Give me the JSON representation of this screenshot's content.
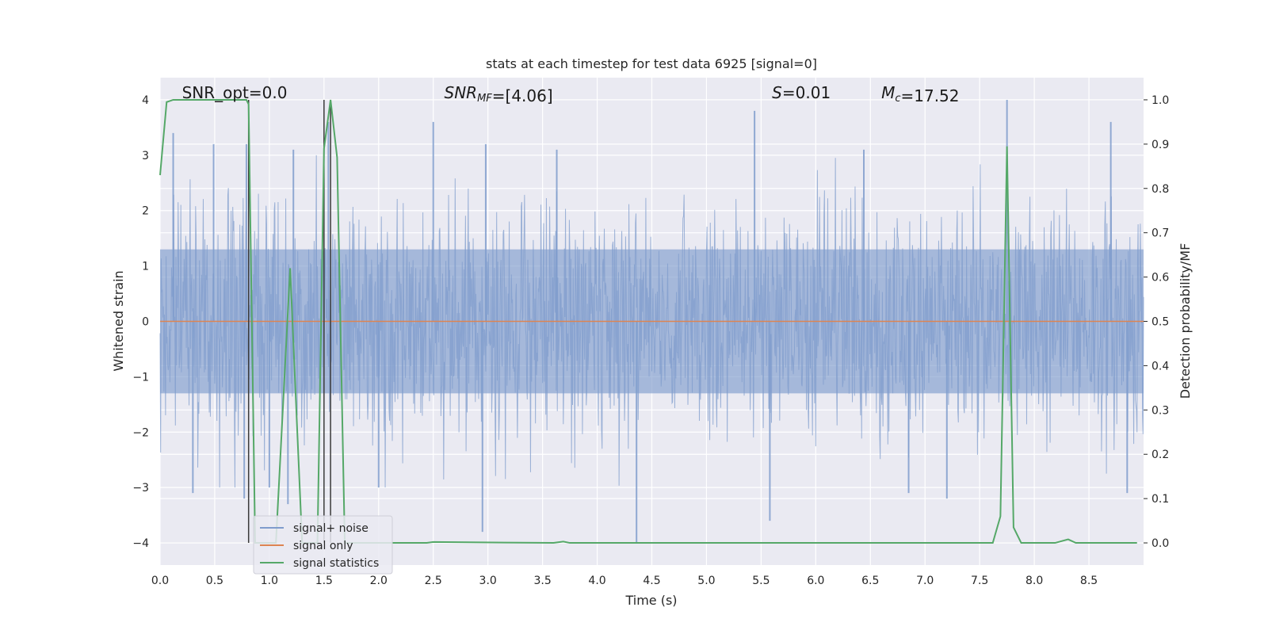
{
  "chart_data": {
    "type": "line",
    "title": "stats at each timestep for test data 6925 [signal=0]",
    "xlabel": "Time (s)",
    "ylabel_left": "Whitened strain",
    "ylabel_right": "Detection probability/MF",
    "xlim": [
      0.0,
      9.0
    ],
    "ylim_left": [
      -4.4,
      4.4
    ],
    "ylim_right": [
      -0.05,
      1.05
    ],
    "xticks": [
      0.0,
      0.5,
      1.0,
      1.5,
      2.0,
      2.5,
      3.0,
      3.5,
      4.0,
      4.5,
      5.0,
      5.5,
      6.0,
      6.5,
      7.0,
      7.5,
      8.0,
      8.5
    ],
    "xtick_labels": [
      "0.0",
      "0.5",
      "1.0",
      "1.5",
      "2.0",
      "2.5",
      "3.0",
      "3.5",
      "4.0",
      "4.5",
      "5.0",
      "5.5",
      "6.0",
      "6.5",
      "7.0",
      "7.5",
      "8.0",
      "8.5"
    ],
    "yticks_left": [
      -4,
      -3,
      -2,
      -1,
      0,
      1,
      2,
      3,
      4
    ],
    "ytick_labels_left": [
      "−4",
      "−3",
      "−2",
      "−1",
      "0",
      "1",
      "2",
      "3",
      "4"
    ],
    "yticks_right": [
      0.0,
      0.1,
      0.2,
      0.3,
      0.4,
      0.5,
      0.6,
      0.7,
      0.8,
      0.9,
      1.0
    ],
    "ytick_labels_right": [
      "0.0",
      "0.1",
      "0.2",
      "0.3",
      "0.4",
      "0.5",
      "0.6",
      "0.7",
      "0.8",
      "0.9",
      "1.0"
    ],
    "grid": true,
    "legend_position": "lower-left",
    "annotations": [
      {
        "text": "SNR_opt=0.0",
        "x": 0.2
      },
      {
        "text": "SNR_MF=[4.06]",
        "x": 2.6
      },
      {
        "text": "S=0.01",
        "x": 5.6
      },
      {
        "text": "M_c=17.52",
        "x": 6.6
      }
    ],
    "vertical_lines": [
      0.81,
      1.5,
      1.56
    ],
    "vertical_lines_range": [
      -4.0,
      4.0
    ],
    "series": [
      {
        "name": "signal+ noise",
        "axis": "left",
        "color": "#7f9ccc",
        "kind": "noise",
        "x_range": [
          0.0,
          9.0
        ],
        "envelope_upper": 2.0,
        "envelope_lower": -1.9,
        "spikes": [
          {
            "x": 0.12,
            "y": 3.4
          },
          {
            "x": 0.49,
            "y": 3.2
          },
          {
            "x": 0.79,
            "y": 3.2
          },
          {
            "x": 1.22,
            "y": 3.1
          },
          {
            "x": 1.54,
            "y": 3.6
          },
          {
            "x": 2.5,
            "y": 3.6
          },
          {
            "x": 2.98,
            "y": 3.2
          },
          {
            "x": 3.63,
            "y": 3.1
          },
          {
            "x": 5.44,
            "y": 3.8
          },
          {
            "x": 6.44,
            "y": 3.1
          },
          {
            "x": 7.75,
            "y": 4.0
          },
          {
            "x": 8.7,
            "y": 3.6
          },
          {
            "x": 0.3,
            "y": -3.1
          },
          {
            "x": 0.77,
            "y": -3.2
          },
          {
            "x": 1.17,
            "y": -3.3
          },
          {
            "x": 2.95,
            "y": -3.8
          },
          {
            "x": 4.36,
            "y": -4.0
          },
          {
            "x": 5.58,
            "y": -3.6
          },
          {
            "x": 6.85,
            "y": -3.1
          },
          {
            "x": 7.2,
            "y": -3.2
          },
          {
            "x": 8.85,
            "y": -3.1
          },
          {
            "x": 1.0,
            "y": -3.0
          },
          {
            "x": 2.0,
            "y": -3.0
          }
        ]
      },
      {
        "name": "signal only",
        "axis": "left",
        "color": "#dd8452",
        "x": [
          0.0,
          9.0
        ],
        "y": [
          0.0,
          0.0
        ]
      },
      {
        "name": "signal statistics",
        "axis": "right",
        "color": "#55a868",
        "x": [
          0.0,
          0.06,
          0.12,
          0.5,
          0.79,
          0.81,
          0.87,
          0.94,
          1.06,
          1.19,
          1.3,
          1.38,
          1.44,
          1.5,
          1.56,
          1.62,
          1.69,
          1.75,
          2.0,
          2.44,
          2.5,
          3.6,
          3.69,
          3.75,
          7.62,
          7.69,
          7.75,
          7.81,
          7.88,
          8.19,
          8.31,
          8.38,
          8.75,
          8.94
        ],
        "y": [
          0.83,
          0.995,
          1.0,
          1.0,
          1.0,
          0.99,
          0.0,
          0.0,
          0.0,
          0.62,
          0.0,
          0.0,
          0.0,
          0.89,
          1.0,
          0.87,
          0.0,
          0.0,
          0.0,
          0.0,
          0.002,
          0.0,
          0.003,
          0.0,
          0.0,
          0.06,
          0.895,
          0.035,
          0.0,
          0.0,
          0.008,
          0.0,
          0.0,
          0.0
        ]
      }
    ]
  }
}
